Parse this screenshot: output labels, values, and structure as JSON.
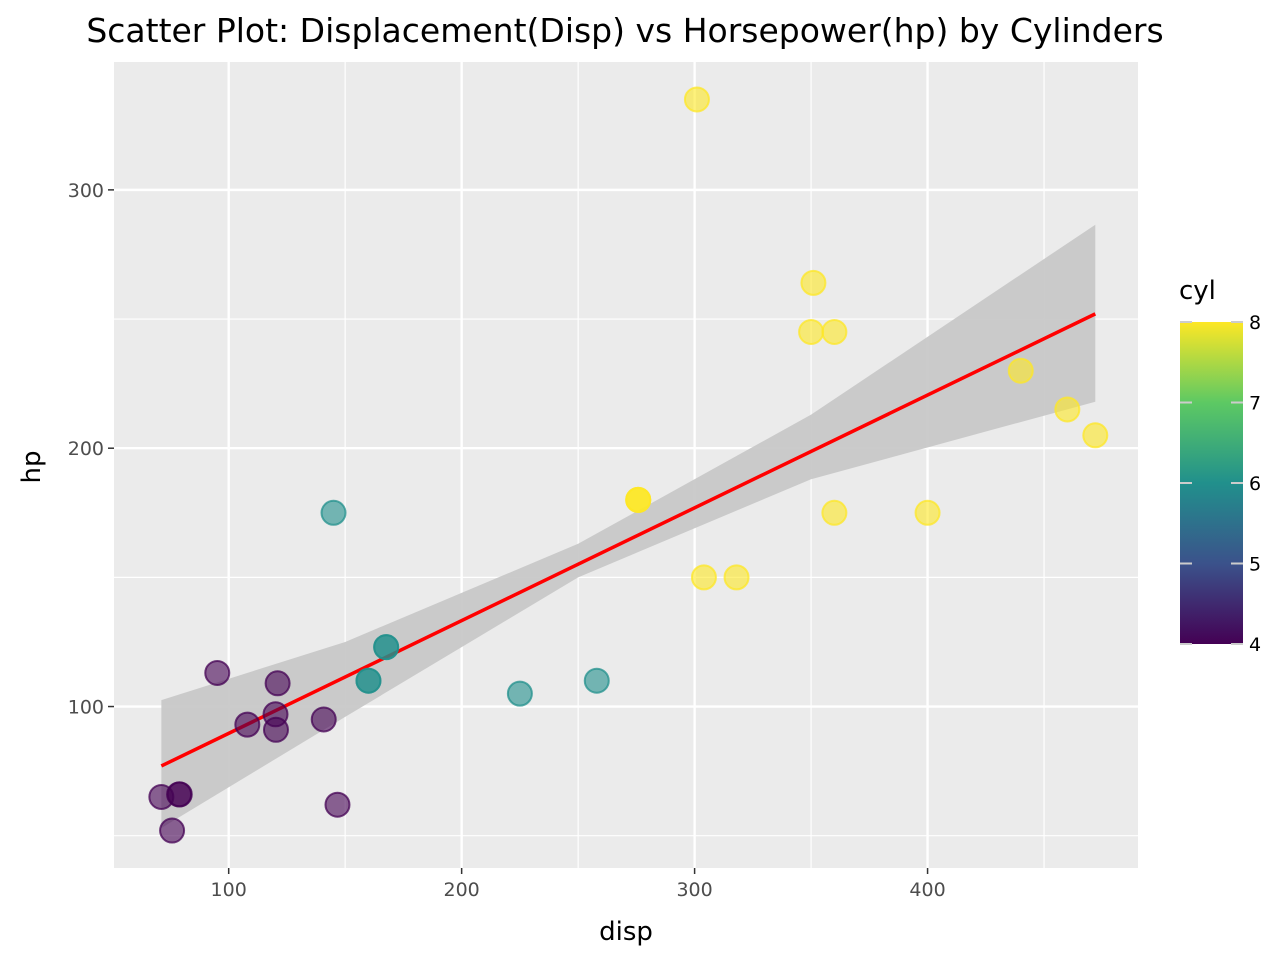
{
  "chart_data": {
    "type": "scatter",
    "title": "Scatter Plot: Displacement(Disp) vs Horsepower(hp) by Cylinders",
    "xlabel": "disp",
    "ylabel": "hp",
    "xlim": [
      50.77,
      490.33
    ],
    "ylim": [
      37.5,
      349.5
    ],
    "x_ticks": [
      100,
      200,
      300,
      400
    ],
    "y_ticks": [
      100,
      200,
      300
    ],
    "grid": true,
    "legend": {
      "title": "cyl",
      "type": "colorbar",
      "position": "right",
      "ticks": [
        4,
        5,
        6,
        7,
        8
      ],
      "range": [
        4,
        8
      ]
    },
    "points": [
      {
        "x": 160,
        "y": 110,
        "cyl": 6
      },
      {
        "x": 160,
        "y": 110,
        "cyl": 6
      },
      {
        "x": 108,
        "y": 93,
        "cyl": 4
      },
      {
        "x": 258,
        "y": 110,
        "cyl": 6
      },
      {
        "x": 360,
        "y": 175,
        "cyl": 8
      },
      {
        "x": 225,
        "y": 105,
        "cyl": 6
      },
      {
        "x": 360,
        "y": 245,
        "cyl": 8
      },
      {
        "x": 146.7,
        "y": 62,
        "cyl": 4
      },
      {
        "x": 140.8,
        "y": 95,
        "cyl": 4
      },
      {
        "x": 167.6,
        "y": 123,
        "cyl": 6
      },
      {
        "x": 167.6,
        "y": 123,
        "cyl": 6
      },
      {
        "x": 275.8,
        "y": 180,
        "cyl": 8
      },
      {
        "x": 275.8,
        "y": 180,
        "cyl": 8
      },
      {
        "x": 275.8,
        "y": 180,
        "cyl": 8
      },
      {
        "x": 472,
        "y": 205,
        "cyl": 8
      },
      {
        "x": 460,
        "y": 215,
        "cyl": 8
      },
      {
        "x": 440,
        "y": 230,
        "cyl": 8
      },
      {
        "x": 78.7,
        "y": 66,
        "cyl": 4
      },
      {
        "x": 75.7,
        "y": 52,
        "cyl": 4
      },
      {
        "x": 71.1,
        "y": 65,
        "cyl": 4
      },
      {
        "x": 120.1,
        "y": 97,
        "cyl": 4
      },
      {
        "x": 318,
        "y": 150,
        "cyl": 8
      },
      {
        "x": 304,
        "y": 150,
        "cyl": 8
      },
      {
        "x": 350,
        "y": 245,
        "cyl": 8
      },
      {
        "x": 400,
        "y": 175,
        "cyl": 8
      },
      {
        "x": 79,
        "y": 66,
        "cyl": 4
      },
      {
        "x": 120.3,
        "y": 91,
        "cyl": 4
      },
      {
        "x": 95.1,
        "y": 113,
        "cyl": 4
      },
      {
        "x": 351,
        "y": 264,
        "cyl": 8
      },
      {
        "x": 145,
        "y": 175,
        "cyl": 6
      },
      {
        "x": 301,
        "y": 335,
        "cyl": 8
      },
      {
        "x": 121,
        "y": 109,
        "cyl": 4
      }
    ],
    "trend": {
      "method": "linear",
      "x_range": [
        71.1,
        472
      ],
      "line_color": "#ff0000",
      "line": [
        {
          "x": 71.1,
          "y": 77.0
        },
        {
          "x": 472,
          "y": 252.0
        }
      ],
      "ci_upper": [
        {
          "x": 71.1,
          "y": 102.5
        },
        {
          "x": 150,
          "y": 125.0
        },
        {
          "x": 250,
          "y": 163.0
        },
        {
          "x": 350,
          "y": 213.0
        },
        {
          "x": 472,
          "y": 286.5
        }
      ],
      "ci_lower": [
        {
          "x": 71.1,
          "y": 53.0
        },
        {
          "x": 150,
          "y": 96.0
        },
        {
          "x": 250,
          "y": 150.0
        },
        {
          "x": 350,
          "y": 188.0
        },
        {
          "x": 472,
          "y": 218.0
        }
      ]
    },
    "colors": {
      "panel": "#ebebeb",
      "grid_major": "#ffffff",
      "band": "#c8c8c8",
      "viridis_4": "#440154",
      "viridis_5": "#3b528b",
      "viridis_6": "#21908c",
      "viridis_7": "#5dc963",
      "viridis_8": "#fde725"
    }
  }
}
